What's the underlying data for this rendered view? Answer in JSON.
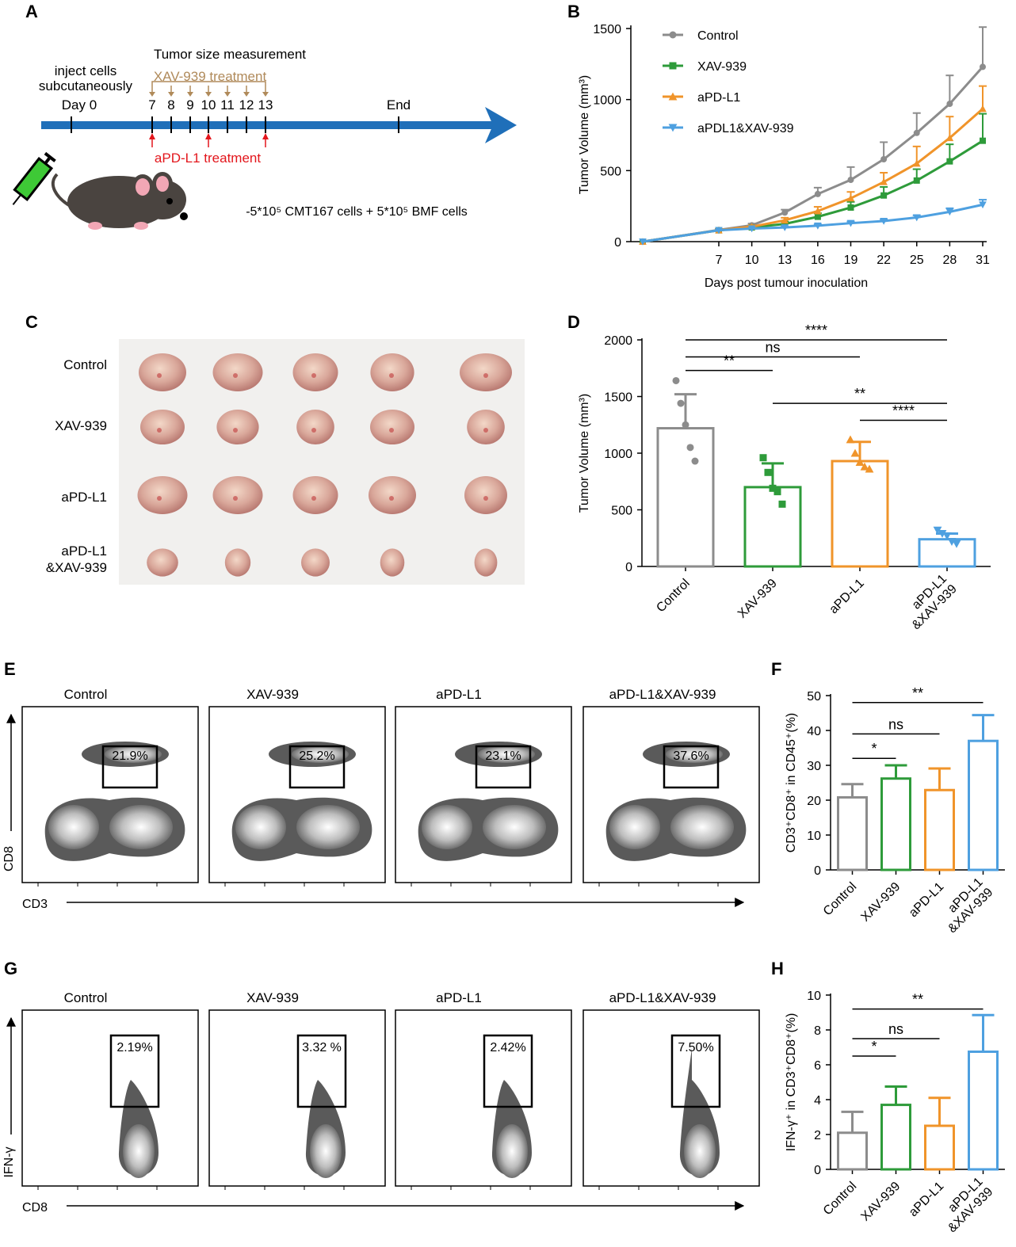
{
  "colors": {
    "control": "#8c8c8c",
    "xav": "#2e9b3a",
    "apdl1": "#f0942a",
    "combo": "#4ea0e0",
    "timeline": "#1f6fb9",
    "xav_treat": "#b08a5a",
    "apd_treat": "#e3161c",
    "mouse": "#4a4440",
    "syringe": "#3ec936"
  },
  "panel_labels": {
    "a": "A",
    "b": "B",
    "c": "C",
    "d": "D",
    "e": "E",
    "f": "F",
    "g": "G",
    "h": "H"
  },
  "panel_a": {
    "inject_line1": "inject cells",
    "inject_line2": "subcutaneously",
    "day0": "Day 0",
    "measure": "Tumor size measurement",
    "xav_treatment": "XAV-939 treatment",
    "days": [
      "7",
      "8",
      "9",
      "10",
      "11",
      "12",
      "13"
    ],
    "end": "End",
    "apd_treatment": "aPD-L1 treatment",
    "cells_text": "-5*10⁵ CMT167 cells + 5*10⁵ BMF cells"
  },
  "panel_c": {
    "rows": [
      "Control",
      "XAV-939",
      "aPD-L1",
      "aPD-L1",
      "&XAV-939"
    ]
  },
  "flow_e": {
    "titles": [
      "Control",
      "XAV-939",
      "aPD-L1",
      "aPD-L1&XAV-939"
    ],
    "percentages": [
      "21.9%",
      "25.2%",
      "23.1%",
      "37.6%"
    ],
    "y_label": "CD8",
    "x_label": "CD3"
  },
  "flow_g": {
    "titles": [
      "Control",
      "XAV-939",
      "aPD-L1",
      "aPD-L1&XAV-939"
    ],
    "percentages": [
      "2.19%",
      "3.32 %",
      "2.42%",
      "7.50%"
    ],
    "y_label": "IFN-γ",
    "x_label": "CD8"
  },
  "chart_data": [
    {
      "id": "B",
      "type": "line",
      "x": [
        0,
        7,
        10,
        13,
        16,
        19,
        22,
        25,
        28,
        31
      ],
      "x_ticks": [
        "7",
        "10",
        "13",
        "16",
        "19",
        "22",
        "25",
        "28",
        "31"
      ],
      "xlabel": "Days post tumour inoculation",
      "ylabel": "Tumor Volume (mm³)",
      "ylim": [
        0,
        1500
      ],
      "y_ticks": [
        "0",
        "500",
        "1000",
        "1500"
      ],
      "series": [
        {
          "name": "Control",
          "color": "#8c8c8c",
          "marker": "circle",
          "values": [
            0,
            82,
            115,
            205,
            335,
            435,
            580,
            765,
            970,
            1230
          ],
          "err": [
            0,
            8,
            12,
            20,
            45,
            90,
            120,
            140,
            200,
            280
          ]
        },
        {
          "name": "XAV-939",
          "color": "#2e9b3a",
          "marker": "square",
          "values": [
            0,
            80,
            100,
            125,
            175,
            240,
            325,
            430,
            565,
            710
          ],
          "err": [
            0,
            8,
            10,
            15,
            25,
            40,
            60,
            80,
            120,
            190
          ]
        },
        {
          "name": "aPD-L1",
          "color": "#f0942a",
          "marker": "triangle-up",
          "values": [
            0,
            80,
            105,
            150,
            215,
            305,
            420,
            550,
            730,
            935
          ],
          "err": [
            0,
            8,
            10,
            18,
            30,
            45,
            65,
            120,
            150,
            160
          ]
        },
        {
          "name": "aPDL1&XAV-939",
          "color": "#4ea0e0",
          "marker": "triangle-down",
          "values": [
            0,
            80,
            92,
            100,
            112,
            130,
            145,
            170,
            210,
            260
          ],
          "err": [
            0,
            5,
            5,
            8,
            10,
            12,
            12,
            15,
            25,
            35
          ]
        }
      ]
    },
    {
      "id": "D",
      "type": "bar",
      "categories": [
        "Control",
        "XAV-939",
        "aPD-L1",
        "aPD-L1\n&XAV-939"
      ],
      "category_lines": [
        [
          "Control"
        ],
        [
          "XAV-939"
        ],
        [
          "aPD-L1"
        ],
        [
          "aPD-L1",
          "&XAV-939"
        ]
      ],
      "ylabel": "Tumor Volume (mm³)",
      "ylim": [
        0,
        2000
      ],
      "y_ticks": [
        "0",
        "500",
        "1000",
        "1500",
        "2000"
      ],
      "values": [
        1220,
        700,
        930,
        240
      ],
      "err": [
        300,
        210,
        170,
        50
      ],
      "points": [
        [
          1640,
          1440,
          1250,
          1050,
          930
        ],
        [
          960,
          830,
          690,
          660,
          550
        ],
        [
          1120,
          1000,
          920,
          880,
          860
        ],
        [
          320,
          290,
          270,
          220,
          200
        ]
      ],
      "colors": [
        "#8c8c8c",
        "#2e9b3a",
        "#f0942a",
        "#4ea0e0"
      ],
      "markers": [
        "circle",
        "square",
        "triangle-up",
        "triangle-down"
      ],
      "significance": [
        {
          "from": 0,
          "to": 3,
          "label": "****",
          "y": 2000
        },
        {
          "from": 0,
          "to": 2,
          "label": "ns",
          "y": 1850
        },
        {
          "from": 0,
          "to": 1,
          "label": "**",
          "y": 1730
        },
        {
          "from": 1,
          "to": 3,
          "label": "**",
          "y": 1440
        },
        {
          "from": 2,
          "to": 3,
          "label": "****",
          "y": 1290
        }
      ]
    },
    {
      "id": "F",
      "type": "bar",
      "categories": [
        "Control",
        "XAV-939",
        "aPD-L1",
        "aPD-L1\n&XAV-939"
      ],
      "category_lines": [
        [
          "Control"
        ],
        [
          "XAV-939"
        ],
        [
          "aPD-L1"
        ],
        [
          "aPD-L1",
          "&XAV-939"
        ]
      ],
      "ylabel": "CD3⁺CD8⁺ in CD45⁺(%)",
      "ylim": [
        0,
        50
      ],
      "y_ticks": [
        "0",
        "10",
        "20",
        "30",
        "40",
        "50"
      ],
      "values": [
        20.8,
        26.2,
        22.9,
        37.0
      ],
      "err": [
        3.8,
        3.8,
        6.2,
        7.4
      ],
      "colors": [
        "#8c8c8c",
        "#2e9b3a",
        "#f0942a",
        "#4ea0e0"
      ],
      "significance": [
        {
          "from": 0,
          "to": 3,
          "label": "**",
          "y": 48
        },
        {
          "from": 0,
          "to": 2,
          "label": "ns",
          "y": 39
        },
        {
          "from": 0,
          "to": 1,
          "label": "*",
          "y": 32
        }
      ]
    },
    {
      "id": "H",
      "type": "bar",
      "categories": [
        "Control",
        "XAV-939",
        "aPD-L1",
        "aPD-L1\n&XAV-939"
      ],
      "category_lines": [
        [
          "Control"
        ],
        [
          "XAV-939"
        ],
        [
          "aPD-L1"
        ],
        [
          "aPD-L1",
          "&XAV-939"
        ]
      ],
      "ylabel": "IFN-γ⁺ in CD3⁺CD8⁺(%)",
      "ylim": [
        0,
        10
      ],
      "y_ticks": [
        "0",
        "2",
        "4",
        "6",
        "8",
        "10"
      ],
      "values": [
        2.1,
        3.7,
        2.5,
        6.75
      ],
      "err": [
        1.2,
        1.05,
        1.6,
        2.1
      ],
      "colors": [
        "#8c8c8c",
        "#2e9b3a",
        "#f0942a",
        "#4ea0e0"
      ],
      "significance": [
        {
          "from": 0,
          "to": 3,
          "label": "**",
          "y": 9.2
        },
        {
          "from": 0,
          "to": 2,
          "label": "ns",
          "y": 7.5
        },
        {
          "from": 0,
          "to": 1,
          "label": "*",
          "y": 6.5
        }
      ]
    }
  ]
}
